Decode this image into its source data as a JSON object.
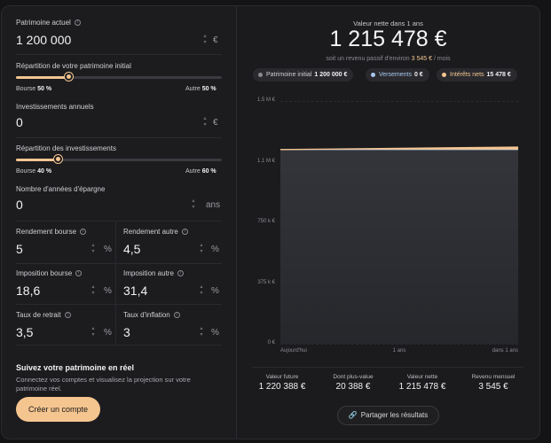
{
  "left": {
    "patrimoine": {
      "label": "Patrimoine actuel",
      "value": "1 200 000",
      "unit": "€"
    },
    "repartition_patrimoine": {
      "label": "Répartition de votre patrimoine initial",
      "left_label": "Bourse",
      "left_value": "50 %",
      "right_label": "Autre",
      "right_value": "50 %",
      "fraction": 0.5
    },
    "investissements": {
      "label": "Investissements annuels",
      "value": "0",
      "unit": "€"
    },
    "repartition_invest": {
      "label": "Répartition des investissements",
      "left_label": "Bourse",
      "left_value": "40 %",
      "right_label": "Autre",
      "right_value": "60 %",
      "fraction": 0.4
    },
    "annees": {
      "label": "Nombre d'années d'épargne",
      "value": "0",
      "unit": "ans"
    },
    "rendement_bourse": {
      "label": "Rendement bourse",
      "value": "5",
      "unit": "%"
    },
    "rendement_autre": {
      "label": "Rendement autre",
      "value": "4,5",
      "unit": "%"
    },
    "imposition_bourse": {
      "label": "Imposition bourse",
      "value": "18,6",
      "unit": "%"
    },
    "imposition_autre": {
      "label": "Imposition autre",
      "value": "31,4",
      "unit": "%"
    },
    "taux_retrait": {
      "label": "Taux de retrait",
      "value": "3,5",
      "unit": "%"
    },
    "taux_inflation": {
      "label": "Taux d'inflation",
      "value": "3",
      "unit": "%"
    },
    "suivi": {
      "title": "Suivez votre patrimoine en réel",
      "text_line1": "Connectez vos comptes et visualisez la projection sur votre",
      "text_line2": "patrimoine réel.",
      "cta": "Créer un compte"
    }
  },
  "right": {
    "header_label": "Valeur nette dans 1 ans",
    "header_value": "1 215 478 €",
    "sub_prefix": "soit un revenu passif d'environ",
    "sub_amount": "3 545 €",
    "sub_suffix": "/ mois",
    "pills": [
      {
        "label": "Patrimoine initial",
        "value": "1 200 000 €",
        "color": "#8a8a90"
      },
      {
        "label": "Versements",
        "value": "0 €",
        "color": "#a7c8f0"
      },
      {
        "label": "Intérêts nets",
        "value": "15 478 €",
        "color": "#f5c590"
      }
    ],
    "stats": [
      {
        "label": "Valeur future",
        "value": "1 220 388 €"
      },
      {
        "label": "Dont plus-value",
        "value": "20 388 €"
      },
      {
        "label": "Valeur nette",
        "value": "1 215 478 €"
      },
      {
        "label": "Revenu mensuel",
        "value": "3 545 €"
      }
    ],
    "share_label": "Partager les résultats"
  },
  "chart_data": {
    "type": "area",
    "x": [
      "Aujourd'hui",
      "1 ans",
      "dans 1 ans"
    ],
    "y_ticks": [
      "1.5 M €",
      "1.1 M €",
      "750 k €",
      "375 k €",
      "0 €"
    ],
    "ylim": [
      0,
      1500000
    ],
    "series": [
      {
        "name": "Patrimoine initial",
        "values": [
          1200000,
          1200000,
          1200000
        ],
        "color": "#2d2e33"
      },
      {
        "name": "Versements",
        "values": [
          0,
          0,
          0
        ],
        "color": "#a7c8f0"
      },
      {
        "name": "Intérêts nets",
        "values": [
          0,
          7739,
          15478
        ],
        "color": "#f5c590"
      }
    ],
    "grid": true
  }
}
